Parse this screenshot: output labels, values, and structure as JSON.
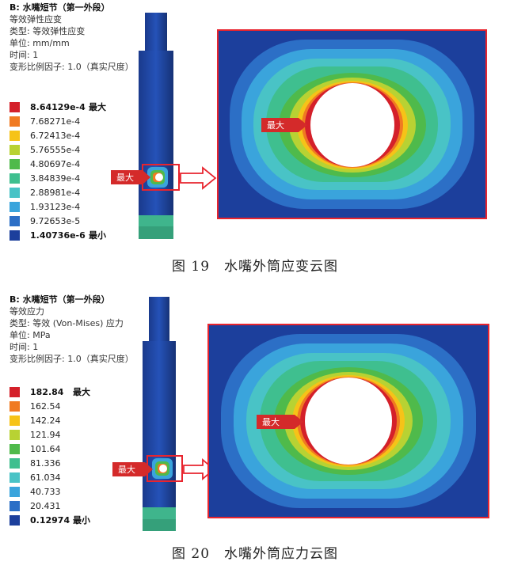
{
  "figures": [
    {
      "title": "B: 水嘴短节（第一外段）",
      "lines": [
        "等效弹性应变",
        "类型: 等效弹性应变",
        "单位: mm/mm",
        "时间: 1",
        "变形比例因子: 1.0（真实尺度）"
      ],
      "legend": [
        {
          "value": "8.64129e-4",
          "tag": "最大",
          "color": "#d4202a"
        },
        {
          "value": "7.68271e-4",
          "tag": "",
          "color": "#f07a22"
        },
        {
          "value": "6.72413e-4",
          "tag": "",
          "color": "#f6c318"
        },
        {
          "value": "5.76555e-4",
          "tag": "",
          "color": "#b8d233"
        },
        {
          "value": "4.80697e-4",
          "tag": "",
          "color": "#4fba4b"
        },
        {
          "value": "3.84839e-4",
          "tag": "",
          "color": "#3fbf8f"
        },
        {
          "value": "2.88981e-4",
          "tag": "",
          "color": "#49c3c6"
        },
        {
          "value": "1.93123e-4",
          "tag": "",
          "color": "#3aa4dc"
        },
        {
          "value": "9.72653e-5",
          "tag": "",
          "color": "#2c6fc6"
        },
        {
          "value": "1.40736e-6",
          "tag": "最小",
          "color": "#1c3f9c"
        }
      ],
      "max_label": "最大",
      "caption": "图 19　水嘴外筒应变云图"
    },
    {
      "title": "B: 水嘴短节（第一外段）",
      "lines": [
        "等效应力",
        "类型: 等效 (Von-Mises) 应力",
        "单位: MPa",
        "时间: 1",
        "变形比例因子: 1.0（真实尺度）"
      ],
      "legend": [
        {
          "value": "182.84",
          "tag": "最大",
          "color": "#d4202a"
        },
        {
          "value": "162.54",
          "tag": "",
          "color": "#f07a22"
        },
        {
          "value": "142.24",
          "tag": "",
          "color": "#f6c318"
        },
        {
          "value": "121.94",
          "tag": "",
          "color": "#b8d233"
        },
        {
          "value": "101.64",
          "tag": "",
          "color": "#4fba4b"
        },
        {
          "value": "81.336",
          "tag": "",
          "color": "#3fbf8f"
        },
        {
          "value": "61.034",
          "tag": "",
          "color": "#49c3c6"
        },
        {
          "value": "40.733",
          "tag": "",
          "color": "#3aa4dc"
        },
        {
          "value": "20.431",
          "tag": "",
          "color": "#2c6fc6"
        },
        {
          "value": "0.12974",
          "tag": "最小",
          "color": "#1c3f9c"
        }
      ],
      "max_label": "最大",
      "caption": "图 20　水嘴外筒应力云图"
    }
  ],
  "colors": {
    "frame_red": "#e8242e",
    "tag_red": "#d42a2a",
    "contour": [
      "#d4202a",
      "#f07a22",
      "#f6c318",
      "#b8d233",
      "#4fba4b",
      "#3fbf8f",
      "#49c3c6",
      "#3aa4dc",
      "#2c6fc6",
      "#1c3f9c"
    ]
  }
}
